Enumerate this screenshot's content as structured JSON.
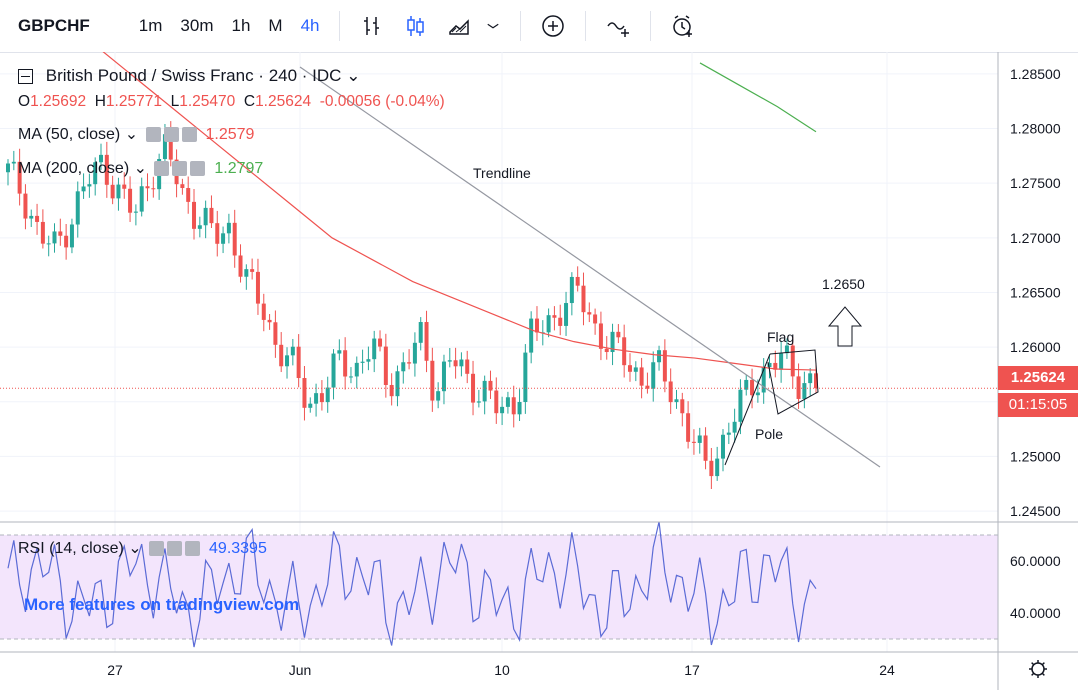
{
  "toolbar": {
    "symbol": "GBPCHF",
    "intervals": [
      "1m",
      "30m",
      "1h",
      "M",
      "4h"
    ],
    "active_interval": "4h",
    "icons": [
      "bar-type-icon",
      "candles-icon",
      "area-chart-icon",
      "chevron-down-icon",
      "add-indicator-icon",
      "compare-icon",
      "alert-icon"
    ]
  },
  "legend": {
    "title": "British Pound / Swiss Franc · 240 · IDC",
    "ohlc": {
      "o_label": "O",
      "o": "1.25692",
      "h_label": "H",
      "h": "1.25771",
      "l_label": "L",
      "l": "1.25470",
      "c_label": "C",
      "c": "1.25624",
      "change": "-0.00056 (-0.04%)"
    },
    "ma50": {
      "label": "MA (50, close)",
      "value": "1.2579"
    },
    "ma200": {
      "label": "MA (200, close)",
      "value": "1.2797"
    },
    "rsi": {
      "label": "RSI (14, close)",
      "value": "49.3395"
    }
  },
  "price_axis": {
    "ticks": [
      "1.28500",
      "1.28000",
      "1.27500",
      "1.27000",
      "1.26500",
      "1.26000",
      "1.25500",
      "1.25000",
      "1.24500"
    ],
    "last_price": "1.25624",
    "countdown": "01:15:05"
  },
  "rsi_axis": {
    "ticks": [
      "60.0000",
      "40.0000"
    ]
  },
  "time_axis": {
    "ticks": [
      "27",
      "Jun",
      "10",
      "17",
      "24"
    ]
  },
  "annotations": {
    "trendline": "Trendline",
    "flag": "Flag",
    "pole": "Pole",
    "target": "1.2650"
  },
  "watermark": "More features on tradingview.com",
  "colors": {
    "up": "#26a69a",
    "down": "#ef5350",
    "ma50": "#ef5350",
    "ma200": "#4caf50",
    "rsi": "#5b6bd6",
    "rsi_band": "#f3e5fc"
  },
  "chart_data": {
    "type": "candlestick",
    "symbol": "GBPCHF",
    "interval": "240",
    "ylim": [
      1.244,
      1.287
    ],
    "price_series_close": [
      1.276,
      1.274,
      1.27,
      1.269,
      1.272,
      1.275,
      1.277,
      1.274,
      1.272,
      1.276,
      1.278,
      1.274,
      1.272,
      1.27,
      1.271,
      1.266,
      1.264,
      1.26,
      1.258,
      1.255,
      1.256,
      1.259,
      1.258,
      1.26,
      1.257,
      1.258,
      1.261,
      1.256,
      1.259,
      1.257,
      1.256,
      1.254,
      1.255,
      1.261,
      1.262,
      1.264,
      1.265,
      1.262,
      1.26,
      1.259,
      1.257,
      1.258,
      1.256,
      1.252,
      1.249,
      1.251,
      1.254,
      1.257,
      1.258,
      1.259,
      1.257,
      1.2562
    ],
    "ma50": [
      1.288,
      1.285,
      1.282,
      1.279,
      1.276,
      1.273,
      1.27,
      1.268,
      1.266,
      1.2645,
      1.263,
      1.2615,
      1.2605,
      1.2598,
      1.2593,
      1.259,
      1.2585,
      1.258,
      1.2579
    ],
    "ma200": [
      1.286,
      1.284,
      1.282,
      1.2797
    ],
    "rsi": {
      "ylim": [
        25,
        75
      ],
      "bands": [
        30,
        70
      ],
      "last": 49.3395
    }
  }
}
